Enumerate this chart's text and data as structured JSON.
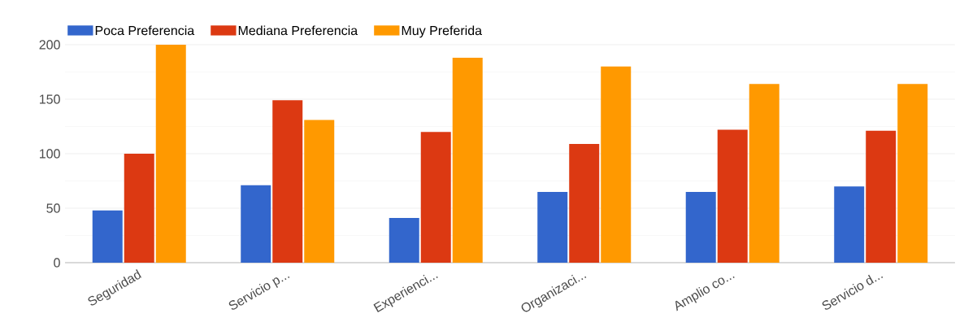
{
  "chart_data": {
    "type": "bar",
    "categories": [
      "Seguridad",
      "Servicio p...",
      "Experienci...",
      "Organizaci...",
      "Amplio co...",
      "Servicio d..."
    ],
    "series": [
      {
        "name": "Poca Preferencia",
        "color": "#3366cc",
        "values": [
          48,
          71,
          41,
          65,
          65,
          70
        ]
      },
      {
        "name": "Mediana Preferencia",
        "color": "#dc3912",
        "values": [
          100,
          149,
          120,
          109,
          122,
          121
        ]
      },
      {
        "name": "Muy Preferida",
        "color": "#ff9900",
        "values": [
          200,
          131,
          188,
          180,
          164,
          164
        ]
      }
    ],
    "ylim": [
      0,
      200
    ],
    "yticks": [
      0,
      50,
      100,
      150,
      200
    ],
    "grid": "y",
    "legend": "top left"
  }
}
